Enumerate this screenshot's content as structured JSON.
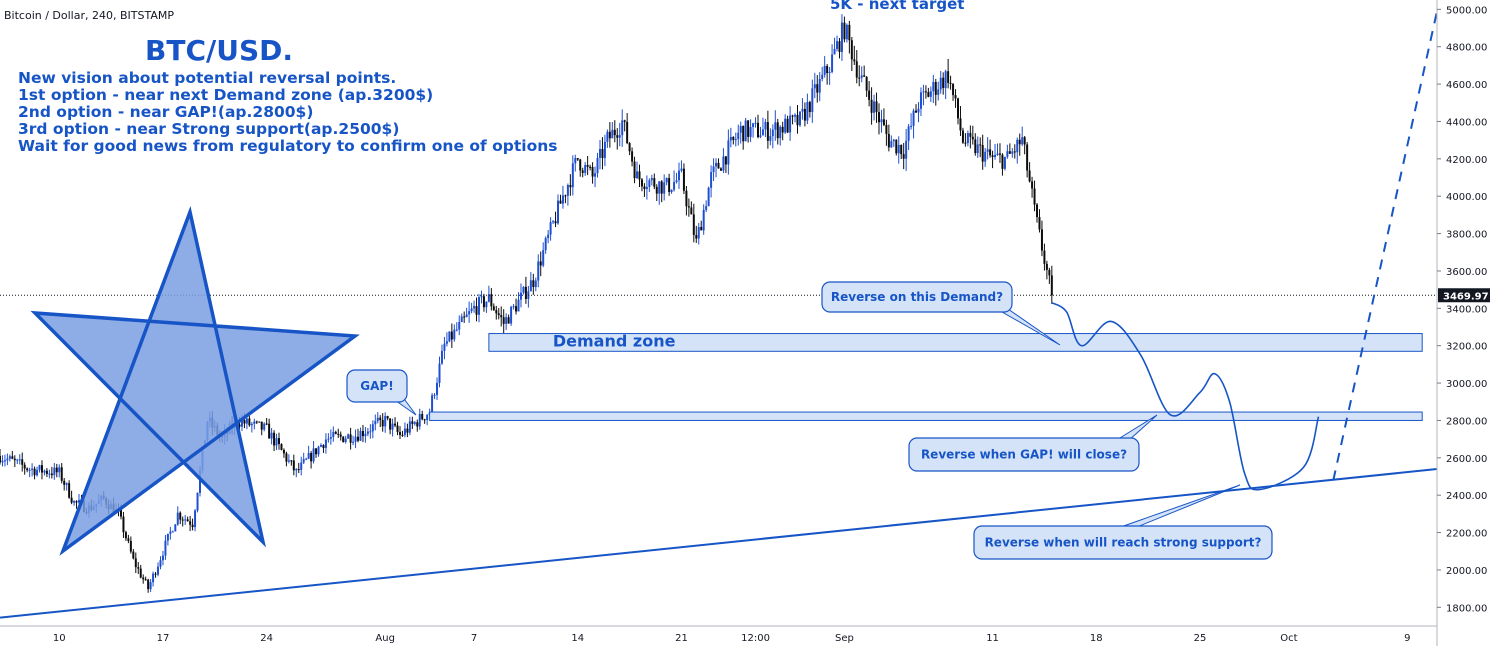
{
  "header": {
    "symbol_line": "Bitcoin / Dollar, 240, BITSTAMP"
  },
  "idea": {
    "title": "BTC/USD.",
    "lines": [
      "New vision about potential reversal points.",
      "1st option - near next Demand zone (ap.3200$)",
      "2nd option - near GAP!(ap.2800$)",
      "3rd option - near Strong support(ap.2500$)",
      "Wait for good news from regulatory to confirm one of options"
    ]
  },
  "colors": {
    "accent": "#1755c7",
    "up_candle": "#1f4fd1",
    "down_candle": "#0c0c0c",
    "zone_fill": "#d5e3f8",
    "star_fill": "#7a9fe3"
  },
  "chart_data": {
    "type": "candlestick",
    "symbol": "Bitcoin / Dollar",
    "interval": "240",
    "exchange": "BITSTAMP",
    "ylim": [
      1700,
      5050
    ],
    "y_ticks": [
      1800,
      2000,
      2200,
      2400,
      2600,
      2800,
      3000,
      3200,
      3400,
      3600,
      3800,
      4000,
      4200,
      4400,
      4600,
      4800,
      5000
    ],
    "y_tick_labels": [
      "1800.00",
      "2000.00",
      "2200.00",
      "2400.00",
      "2600.00",
      "2800.00",
      "3000.00",
      "3200.00",
      "3400.00",
      "3600.00",
      "3800.00",
      "4000.00",
      "4200.00",
      "4400.00",
      "4600.00",
      "4800.00",
      "5000.00"
    ],
    "x_range_days": [
      "2017-07-06",
      "2017-10-11"
    ],
    "x_ticks": [
      {
        "label": "10",
        "day": "2017-07-10"
      },
      {
        "label": "17",
        "day": "2017-07-17"
      },
      {
        "label": "24",
        "day": "2017-07-24"
      },
      {
        "label": "Aug",
        "day": "2017-08-01"
      },
      {
        "label": "7",
        "day": "2017-08-07"
      },
      {
        "label": "14",
        "day": "2017-08-14"
      },
      {
        "label": "21",
        "day": "2017-08-21"
      },
      {
        "label": "12:00",
        "day": "2017-08-26"
      },
      {
        "label": "Sep",
        "day": "2017-09-01"
      },
      {
        "label": "11",
        "day": "2017-09-11"
      },
      {
        "label": "18",
        "day": "2017-09-18"
      },
      {
        "label": "25",
        "day": "2017-09-25"
      },
      {
        "label": "Oct",
        "day": "2017-10-01"
      },
      {
        "label": "9",
        "day": "2017-10-09"
      }
    ],
    "last_price": 3469.97,
    "last_price_label": "3469.97",
    "price_path": [
      [
        "2017-07-06",
        2610
      ],
      [
        "2017-07-08",
        2540
      ],
      [
        "2017-07-10",
        2520
      ],
      [
        "2017-07-11",
        2360
      ],
      [
        "2017-07-12",
        2330
      ],
      [
        "2017-07-13",
        2380
      ],
      [
        "2017-07-14",
        2300
      ],
      [
        "2017-07-15",
        2050
      ],
      [
        "2017-07-16",
        1900
      ],
      [
        "2017-07-17",
        2100
      ],
      [
        "2017-07-18",
        2300
      ],
      [
        "2017-07-19",
        2250
      ],
      [
        "2017-07-20",
        2800
      ],
      [
        "2017-07-21",
        2700
      ],
      [
        "2017-07-22",
        2800
      ],
      [
        "2017-07-24",
        2750
      ],
      [
        "2017-07-26",
        2520
      ],
      [
        "2017-07-28",
        2700
      ],
      [
        "2017-07-30",
        2720
      ],
      [
        "2017-08-01",
        2800
      ],
      [
        "2017-08-02",
        2720
      ],
      [
        "2017-08-04",
        2850
      ],
      [
        "2017-08-05",
        3200
      ],
      [
        "2017-08-07",
        3400
      ],
      [
        "2017-08-08",
        3450
      ],
      [
        "2017-08-09",
        3320
      ],
      [
        "2017-08-11",
        3550
      ],
      [
        "2017-08-13",
        4000
      ],
      [
        "2017-08-14",
        4200
      ],
      [
        "2017-08-15",
        4100
      ],
      [
        "2017-08-16",
        4300
      ],
      [
        "2017-08-17",
        4400
      ],
      [
        "2017-08-18",
        4100
      ],
      [
        "2017-08-20",
        4050
      ],
      [
        "2017-08-21",
        4100
      ],
      [
        "2017-08-22",
        3750
      ],
      [
        "2017-08-23",
        4100
      ],
      [
        "2017-08-25",
        4350
      ],
      [
        "2017-08-27",
        4350
      ],
      [
        "2017-08-29",
        4400
      ],
      [
        "2017-08-31",
        4700
      ],
      [
        "2017-09-01",
        4900
      ],
      [
        "2017-09-02",
        4650
      ],
      [
        "2017-09-04",
        4300
      ],
      [
        "2017-09-05",
        4250
      ],
      [
        "2017-09-06",
        4500
      ],
      [
        "2017-09-08",
        4650
      ],
      [
        "2017-09-09",
        4300
      ],
      [
        "2017-09-10",
        4250
      ],
      [
        "2017-09-11",
        4200
      ],
      [
        "2017-09-12",
        4200
      ],
      [
        "2017-09-13",
        4300
      ],
      [
        "2017-09-14",
        3850
      ],
      [
        "2017-09-15",
        3470
      ]
    ],
    "annotations": {
      "top_label": "5K - next target",
      "callout_demand": "Reverse on this Demand?",
      "zone_label": "Demand zone",
      "callout_gap": "GAP!",
      "callout_gap_close": "Reverse when GAP! will close?",
      "callout_support": "Reverse when will reach strong support?"
    },
    "demand_zone": {
      "from_day": "2017-08-08",
      "to_day": "2017-10-10",
      "low": 3170,
      "high": 3265
    },
    "gap_zone": {
      "from_day": "2017-08-04",
      "to_day": "2017-10-10",
      "low": 2800,
      "high": 2845
    },
    "support_line": {
      "from": [
        "2017-07-06",
        1745
      ],
      "to": [
        "2017-10-11",
        2540
      ]
    },
    "projection_path": [
      [
        "2017-09-15",
        3430
      ],
      [
        "2017-09-16",
        3380
      ],
      [
        "2017-09-17",
        3200
      ],
      [
        "2017-09-19",
        3330
      ],
      [
        "2017-09-21",
        3150
      ],
      [
        "2017-09-23",
        2830
      ],
      [
        "2017-09-25",
        2950
      ],
      [
        "2017-09-26",
        3050
      ],
      [
        "2017-09-27",
        2900
      ],
      [
        "2017-09-28",
        2520
      ],
      [
        "2017-09-29",
        2430
      ],
      [
        "2017-10-02",
        2550
      ],
      [
        "2017-10-03",
        2820
      ]
    ],
    "target_path": {
      "from": [
        "2017-10-04",
        2480
      ],
      "to": [
        "2017-10-11",
        4990
      ]
    }
  }
}
